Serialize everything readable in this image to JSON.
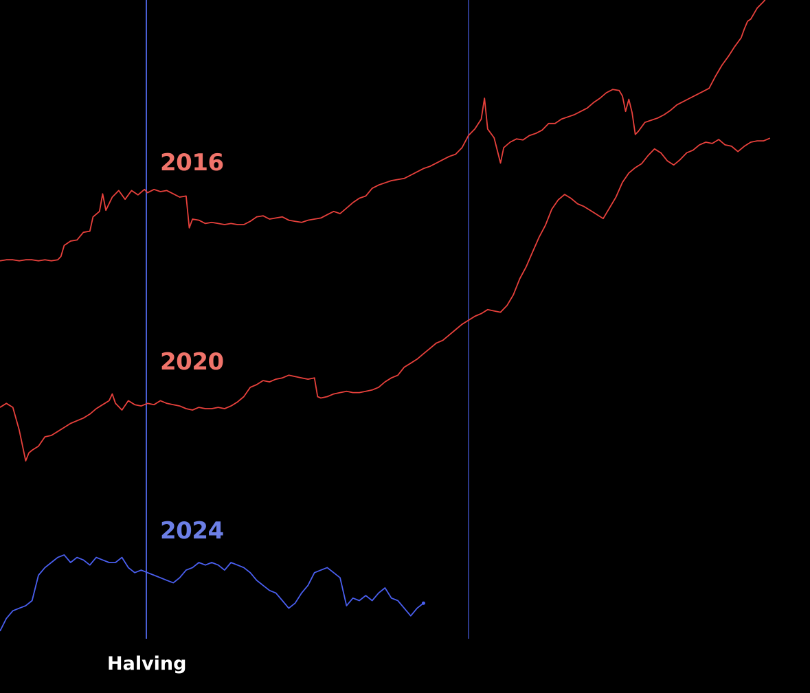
{
  "chart_data": {
    "type": "line",
    "title": "",
    "xlabel": "",
    "ylabel": "",
    "grid": false,
    "legend": "inline labels",
    "x_annotation": "Halving",
    "colors": {
      "background": "#000000",
      "marker_line": "#4a5fd6",
      "red_series": "#e8413c",
      "red_label": "#f0736a",
      "blue_series": "#4a5ff0",
      "blue_label": "#6c7fe6",
      "halving_text": "#ffffff"
    },
    "series": [
      {
        "name": "2016",
        "color": "#e8413c",
        "trace": [
          [
            0,
            2
          ],
          [
            2,
            3
          ],
          [
            4,
            3
          ],
          [
            6,
            2
          ],
          [
            8,
            3
          ],
          [
            10,
            3
          ],
          [
            12,
            2
          ],
          [
            14,
            3
          ],
          [
            16,
            2
          ],
          [
            18,
            3
          ],
          [
            19,
            6
          ],
          [
            20,
            16
          ],
          [
            22,
            20
          ],
          [
            24,
            21
          ],
          [
            26,
            28
          ],
          [
            28,
            29
          ],
          [
            29,
            42
          ],
          [
            31,
            47
          ],
          [
            32,
            63
          ],
          [
            33,
            48
          ],
          [
            35,
            60
          ],
          [
            37,
            66
          ],
          [
            39,
            58
          ],
          [
            41,
            66
          ],
          [
            43,
            62
          ],
          [
            45,
            67
          ],
          [
            46,
            64
          ],
          [
            48,
            67
          ],
          [
            50,
            65
          ],
          [
            52,
            66
          ],
          [
            54,
            63
          ],
          [
            56,
            60
          ],
          [
            58,
            61
          ],
          [
            59,
            32
          ],
          [
            60,
            40
          ],
          [
            62,
            39
          ],
          [
            64,
            36
          ],
          [
            66,
            37
          ],
          [
            68,
            36
          ],
          [
            70,
            35
          ],
          [
            72,
            36
          ],
          [
            74,
            35
          ],
          [
            76,
            35
          ],
          [
            78,
            38
          ],
          [
            80,
            42
          ],
          [
            82,
            43
          ],
          [
            84,
            40
          ],
          [
            86,
            41
          ],
          [
            88,
            42
          ],
          [
            90,
            39
          ],
          [
            92,
            38
          ],
          [
            94,
            37
          ],
          [
            96,
            39
          ],
          [
            98,
            40
          ],
          [
            100,
            41
          ],
          [
            102,
            44
          ],
          [
            104,
            47
          ],
          [
            106,
            45
          ],
          [
            108,
            50
          ],
          [
            110,
            55
          ],
          [
            112,
            59
          ],
          [
            114,
            61
          ],
          [
            116,
            68
          ],
          [
            118,
            71
          ],
          [
            120,
            73
          ],
          [
            122,
            75
          ],
          [
            124,
            76
          ],
          [
            126,
            77
          ],
          [
            128,
            80
          ],
          [
            130,
            83
          ],
          [
            132,
            86
          ],
          [
            134,
            88
          ],
          [
            136,
            91
          ],
          [
            138,
            94
          ],
          [
            140,
            97
          ],
          [
            142,
            99
          ],
          [
            144,
            105
          ],
          [
            146,
            116
          ],
          [
            148,
            122
          ],
          [
            150,
            131
          ],
          [
            151,
            150
          ],
          [
            152,
            122
          ],
          [
            154,
            114
          ],
          [
            156,
            91
          ],
          [
            157,
            105
          ],
          [
            159,
            110
          ],
          [
            161,
            113
          ],
          [
            163,
            112
          ],
          [
            165,
            116
          ],
          [
            167,
            118
          ],
          [
            169,
            121
          ],
          [
            171,
            127
          ],
          [
            173,
            127
          ],
          [
            175,
            131
          ],
          [
            177,
            133
          ],
          [
            179,
            135
          ],
          [
            181,
            138
          ],
          [
            183,
            141
          ],
          [
            185,
            146
          ],
          [
            187,
            150
          ],
          [
            189,
            155
          ],
          [
            191,
            158
          ],
          [
            193,
            157
          ],
          [
            194,
            152
          ],
          [
            195,
            138
          ],
          [
            196,
            149
          ],
          [
            197,
            137
          ],
          [
            198,
            117
          ],
          [
            199,
            120
          ],
          [
            201,
            128
          ],
          [
            203,
            130
          ],
          [
            205,
            132
          ],
          [
            207,
            135
          ],
          [
            209,
            139
          ],
          [
            211,
            144
          ],
          [
            213,
            147
          ],
          [
            215,
            150
          ],
          [
            217,
            153
          ],
          [
            219,
            156
          ],
          [
            221,
            159
          ],
          [
            223,
            170
          ],
          [
            225,
            180
          ],
          [
            227,
            188
          ],
          [
            229,
            197
          ],
          [
            231,
            205
          ],
          [
            232,
            213
          ],
          [
            233,
            220
          ],
          [
            234,
            222
          ],
          [
            236,
            232
          ],
          [
            238,
            238
          ],
          [
            240,
            245
          ]
        ]
      },
      {
        "name": "2020",
        "color": "#e8413c",
        "trace": [
          [
            0,
            2
          ],
          [
            2,
            5
          ],
          [
            4,
            2
          ],
          [
            6,
            -15
          ],
          [
            8,
            -38
          ],
          [
            9,
            -32
          ],
          [
            10,
            -30
          ],
          [
            12,
            -27
          ],
          [
            14,
            -20
          ],
          [
            16,
            -19
          ],
          [
            18,
            -16
          ],
          [
            20,
            -13
          ],
          [
            22,
            -10
          ],
          [
            24,
            -8
          ],
          [
            26,
            -6
          ],
          [
            28,
            -3
          ],
          [
            30,
            1
          ],
          [
            32,
            4
          ],
          [
            34,
            7
          ],
          [
            35,
            12
          ],
          [
            36,
            5
          ],
          [
            38,
            0
          ],
          [
            40,
            7
          ],
          [
            42,
            4
          ],
          [
            44,
            3
          ],
          [
            46,
            5
          ],
          [
            48,
            4
          ],
          [
            50,
            7
          ],
          [
            52,
            5
          ],
          [
            54,
            4
          ],
          [
            56,
            3
          ],
          [
            58,
            1
          ],
          [
            60,
            0
          ],
          [
            62,
            2
          ],
          [
            64,
            1
          ],
          [
            66,
            1
          ],
          [
            68,
            2
          ],
          [
            70,
            1
          ],
          [
            72,
            3
          ],
          [
            74,
            6
          ],
          [
            76,
            10
          ],
          [
            78,
            17
          ],
          [
            80,
            19
          ],
          [
            82,
            22
          ],
          [
            84,
            21
          ],
          [
            86,
            23
          ],
          [
            88,
            24
          ],
          [
            90,
            26
          ],
          [
            92,
            25
          ],
          [
            94,
            24
          ],
          [
            96,
            23
          ],
          [
            98,
            24
          ],
          [
            99,
            10
          ],
          [
            100,
            9
          ],
          [
            102,
            10
          ],
          [
            104,
            12
          ],
          [
            106,
            13
          ],
          [
            108,
            14
          ],
          [
            110,
            13
          ],
          [
            112,
            13
          ],
          [
            114,
            14
          ],
          [
            116,
            15
          ],
          [
            118,
            17
          ],
          [
            120,
            21
          ],
          [
            122,
            24
          ],
          [
            124,
            26
          ],
          [
            126,
            32
          ],
          [
            128,
            35
          ],
          [
            130,
            38
          ],
          [
            132,
            42
          ],
          [
            134,
            46
          ],
          [
            136,
            50
          ],
          [
            138,
            52
          ],
          [
            140,
            56
          ],
          [
            142,
            60
          ],
          [
            144,
            64
          ],
          [
            146,
            67
          ],
          [
            148,
            70
          ],
          [
            150,
            72
          ],
          [
            152,
            75
          ],
          [
            154,
            74
          ],
          [
            156,
            73
          ],
          [
            158,
            78
          ],
          [
            160,
            86
          ],
          [
            162,
            98
          ],
          [
            164,
            107
          ],
          [
            166,
            118
          ],
          [
            168,
            129
          ],
          [
            170,
            138
          ],
          [
            172,
            150
          ],
          [
            174,
            157
          ],
          [
            176,
            161
          ],
          [
            178,
            158
          ],
          [
            180,
            154
          ],
          [
            182,
            152
          ],
          [
            184,
            149
          ],
          [
            186,
            146
          ],
          [
            188,
            143
          ],
          [
            190,
            151
          ],
          [
            192,
            159
          ],
          [
            194,
            170
          ],
          [
            196,
            177
          ],
          [
            198,
            181
          ],
          [
            200,
            184
          ],
          [
            202,
            190
          ],
          [
            204,
            195
          ],
          [
            206,
            192
          ],
          [
            208,
            186
          ],
          [
            210,
            183
          ],
          [
            212,
            187
          ],
          [
            214,
            192
          ],
          [
            216,
            194
          ],
          [
            218,
            198
          ],
          [
            220,
            200
          ],
          [
            222,
            199
          ],
          [
            224,
            202
          ],
          [
            226,
            198
          ],
          [
            228,
            197
          ],
          [
            230,
            193
          ],
          [
            232,
            197
          ],
          [
            234,
            200
          ],
          [
            236,
            201
          ],
          [
            238,
            201
          ],
          [
            240,
            203
          ]
        ]
      },
      {
        "name": "2024",
        "color": "#4a5ff0",
        "trace": [
          [
            0,
            3
          ],
          [
            2,
            8
          ],
          [
            4,
            11
          ],
          [
            6,
            12
          ],
          [
            8,
            13
          ],
          [
            10,
            15
          ],
          [
            12,
            25
          ],
          [
            14,
            28
          ],
          [
            16,
            30
          ],
          [
            18,
            32
          ],
          [
            20,
            33
          ],
          [
            22,
            30
          ],
          [
            24,
            32
          ],
          [
            26,
            31
          ],
          [
            28,
            29
          ],
          [
            30,
            32
          ],
          [
            32,
            31
          ],
          [
            34,
            30
          ],
          [
            36,
            30
          ],
          [
            38,
            32
          ],
          [
            40,
            28
          ],
          [
            42,
            26
          ],
          [
            44,
            27
          ],
          [
            46,
            26
          ],
          [
            48,
            25
          ],
          [
            50,
            24
          ],
          [
            52,
            23
          ],
          [
            54,
            22
          ],
          [
            56,
            24
          ],
          [
            58,
            27
          ],
          [
            60,
            28
          ],
          [
            62,
            30
          ],
          [
            64,
            29
          ],
          [
            66,
            30
          ],
          [
            68,
            29
          ],
          [
            70,
            27
          ],
          [
            72,
            30
          ],
          [
            74,
            29
          ],
          [
            76,
            28
          ],
          [
            78,
            26
          ],
          [
            80,
            23
          ],
          [
            82,
            21
          ],
          [
            84,
            19
          ],
          [
            86,
            18
          ],
          [
            88,
            15
          ],
          [
            90,
            12
          ],
          [
            92,
            14
          ],
          [
            94,
            18
          ],
          [
            96,
            21
          ],
          [
            98,
            26
          ],
          [
            100,
            27
          ],
          [
            102,
            28
          ],
          [
            104,
            26
          ],
          [
            106,
            24
          ],
          [
            108,
            13
          ],
          [
            110,
            16
          ],
          [
            112,
            15
          ],
          [
            114,
            17
          ],
          [
            116,
            15
          ],
          [
            118,
            18
          ],
          [
            120,
            20
          ],
          [
            122,
            16
          ],
          [
            124,
            15
          ],
          [
            126,
            12
          ],
          [
            128,
            9
          ],
          [
            130,
            12
          ],
          [
            132,
            14
          ]
        ]
      }
    ]
  }
}
